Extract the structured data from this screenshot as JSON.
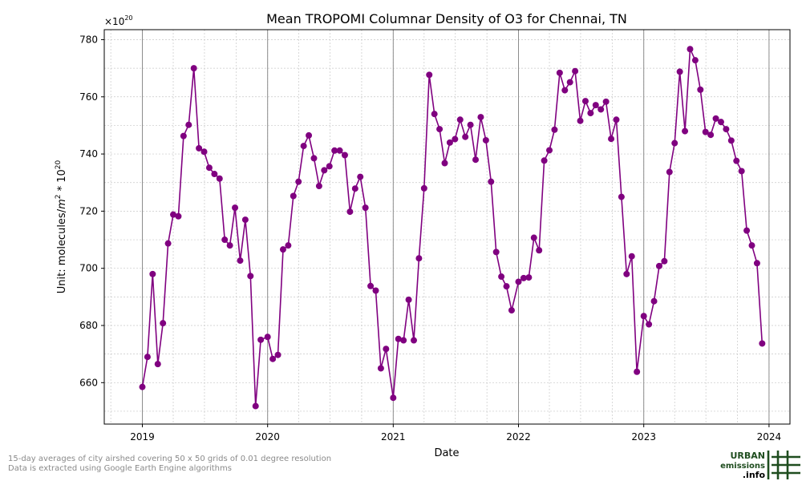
{
  "chart_data": {
    "type": "line",
    "title": "Mean TROPOMI Columnar Density of O3 for Chennai, TN",
    "xlabel": "Date",
    "ylabel_prefix": "Unit: molecules/",
    "ylabel_unit_base": "m",
    "ylabel_unit_exp": "2",
    "ylabel_mid": " * 10",
    "ylabel_exp": "20",
    "offset_base": "×10",
    "offset_exp": "20",
    "xlim": [
      "2018-09-12",
      "2024-03-02"
    ],
    "ylim": [
      645.5,
      783.5
    ],
    "x_ticks": [
      {
        "date": "2019-01-01",
        "label": "2019"
      },
      {
        "date": "2020-01-01",
        "label": "2020"
      },
      {
        "date": "2021-01-01",
        "label": "2021"
      },
      {
        "date": "2022-01-01",
        "label": "2022"
      },
      {
        "date": "2023-01-01",
        "label": "2023"
      },
      {
        "date": "2024-01-01",
        "label": "2024"
      }
    ],
    "y_ticks": [
      660,
      680,
      700,
      720,
      740,
      760,
      780
    ],
    "grid": true,
    "line_color": "#800080",
    "series": [
      {
        "name": "",
        "points": [
          [
            "2019-01-01",
            658.5
          ],
          [
            "2019-01-16",
            669.0
          ],
          [
            "2019-01-31",
            698.0
          ],
          [
            "2019-02-15",
            666.5
          ],
          [
            "2019-03-02",
            680.8
          ],
          [
            "2019-03-17",
            708.7
          ],
          [
            "2019-04-01",
            718.8
          ],
          [
            "2019-04-16",
            718.2
          ],
          [
            "2019-05-01",
            746.3
          ],
          [
            "2019-05-16",
            750.2
          ],
          [
            "2019-05-31",
            770.0
          ],
          [
            "2019-06-15",
            742.0
          ],
          [
            "2019-06-30",
            740.8
          ],
          [
            "2019-07-15",
            735.2
          ],
          [
            "2019-07-30",
            733.0
          ],
          [
            "2019-08-14",
            731.4
          ],
          [
            "2019-08-29",
            710.0
          ],
          [
            "2019-09-13",
            708.0
          ],
          [
            "2019-09-28",
            721.2
          ],
          [
            "2019-10-13",
            702.7
          ],
          [
            "2019-10-28",
            717.0
          ],
          [
            "2019-11-12",
            697.3
          ],
          [
            "2019-11-27",
            651.8
          ],
          [
            "2019-12-12",
            675.0
          ],
          [
            "2020-01-01",
            676.0
          ],
          [
            "2020-01-16",
            668.3
          ],
          [
            "2020-01-31",
            669.7
          ],
          [
            "2020-02-15",
            706.6
          ],
          [
            "2020-03-01",
            708.0
          ],
          [
            "2020-03-16",
            725.3
          ],
          [
            "2020-03-31",
            730.3
          ],
          [
            "2020-04-15",
            742.8
          ],
          [
            "2020-04-30",
            746.5
          ],
          [
            "2020-05-15",
            738.5
          ],
          [
            "2020-05-30",
            728.8
          ],
          [
            "2020-06-14",
            734.3
          ],
          [
            "2020-06-29",
            735.7
          ],
          [
            "2020-07-14",
            741.2
          ],
          [
            "2020-07-29",
            741.2
          ],
          [
            "2020-08-13",
            739.6
          ],
          [
            "2020-08-28",
            719.8
          ],
          [
            "2020-09-12",
            727.9
          ],
          [
            "2020-09-27",
            732.0
          ],
          [
            "2020-10-12",
            721.2
          ],
          [
            "2020-10-27",
            693.8
          ],
          [
            "2020-11-11",
            692.2
          ],
          [
            "2020-11-26",
            665.0
          ],
          [
            "2020-12-11",
            671.8
          ],
          [
            "2021-01-01",
            654.7
          ],
          [
            "2021-01-16",
            675.3
          ],
          [
            "2021-01-31",
            674.8
          ],
          [
            "2021-02-15",
            689.0
          ],
          [
            "2021-03-02",
            674.8
          ],
          [
            "2021-03-17",
            703.5
          ],
          [
            "2021-04-01",
            728.0
          ],
          [
            "2021-04-16",
            767.7
          ],
          [
            "2021-05-01",
            754.0
          ],
          [
            "2021-05-16",
            748.7
          ],
          [
            "2021-05-31",
            736.8
          ],
          [
            "2021-06-15",
            744.0
          ],
          [
            "2021-06-30",
            745.2
          ],
          [
            "2021-07-15",
            752.0
          ],
          [
            "2021-07-30",
            746.0
          ],
          [
            "2021-08-14",
            750.2
          ],
          [
            "2021-08-29",
            738.0
          ],
          [
            "2021-09-13",
            752.9
          ],
          [
            "2021-09-28",
            744.8
          ],
          [
            "2021-10-13",
            730.3
          ],
          [
            "2021-10-28",
            705.7
          ],
          [
            "2021-11-12",
            697.1
          ],
          [
            "2021-11-27",
            693.7
          ],
          [
            "2021-12-12",
            685.3
          ],
          [
            "2022-01-01",
            695.3
          ],
          [
            "2022-01-16",
            696.6
          ],
          [
            "2022-01-31",
            696.8
          ],
          [
            "2022-02-15",
            710.7
          ],
          [
            "2022-03-02",
            706.3
          ],
          [
            "2022-03-17",
            737.7
          ],
          [
            "2022-04-01",
            741.3
          ],
          [
            "2022-04-16",
            748.5
          ],
          [
            "2022-05-01",
            768.4
          ],
          [
            "2022-05-16",
            762.3
          ],
          [
            "2022-05-31",
            765.1
          ],
          [
            "2022-06-15",
            769.0
          ],
          [
            "2022-06-30",
            751.6
          ],
          [
            "2022-07-15",
            758.5
          ],
          [
            "2022-07-30",
            754.3
          ],
          [
            "2022-08-14",
            757.1
          ],
          [
            "2022-08-29",
            755.6
          ],
          [
            "2022-09-13",
            758.3
          ],
          [
            "2022-09-28",
            745.3
          ],
          [
            "2022-10-13",
            752.0
          ],
          [
            "2022-10-28",
            725.0
          ],
          [
            "2022-11-12",
            698.0
          ],
          [
            "2022-11-27",
            704.2
          ],
          [
            "2022-12-12",
            663.8
          ],
          [
            "2023-01-01",
            683.3
          ],
          [
            "2023-01-16",
            680.4
          ],
          [
            "2023-01-31",
            688.5
          ],
          [
            "2023-02-15",
            700.8
          ],
          [
            "2023-03-02",
            702.5
          ],
          [
            "2023-03-17",
            733.7
          ],
          [
            "2023-04-01",
            743.8
          ],
          [
            "2023-04-16",
            768.8
          ],
          [
            "2023-05-01",
            748.0
          ],
          [
            "2023-05-16",
            776.7
          ],
          [
            "2023-05-31",
            772.8
          ],
          [
            "2023-06-15",
            762.5
          ],
          [
            "2023-06-30",
            747.7
          ],
          [
            "2023-07-15",
            746.7
          ],
          [
            "2023-07-30",
            752.4
          ],
          [
            "2023-08-14",
            751.2
          ],
          [
            "2023-08-29",
            748.7
          ],
          [
            "2023-09-13",
            744.7
          ],
          [
            "2023-09-28",
            737.6
          ],
          [
            "2023-10-13",
            734.0
          ],
          [
            "2023-10-28",
            713.2
          ],
          [
            "2023-11-12",
            708.0
          ],
          [
            "2023-11-27",
            701.8
          ],
          [
            "2023-12-12",
            673.7
          ]
        ]
      }
    ]
  },
  "footnotes": [
    "15-day averages of city airshed covering 50 x 50 grids of 0.01 degree resolution",
    "Data is extracted using Google Earth Engine algorithms"
  ],
  "logo": {
    "line1": "URBAN",
    "line2": "emissions",
    "line3": ".info",
    "color": "#1f4d1f"
  }
}
